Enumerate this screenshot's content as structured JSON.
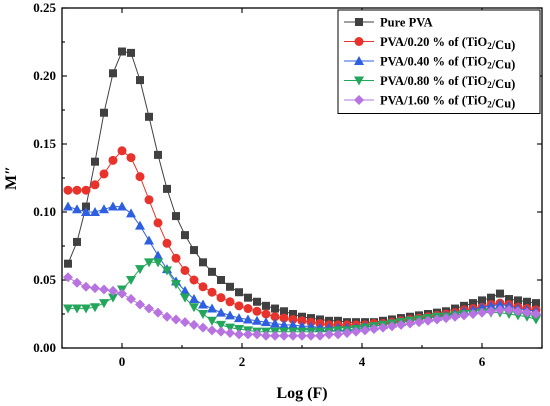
{
  "chart_data": {
    "type": "line",
    "xlabel": "Log (F)",
    "ylabel": "M″",
    "xlim": [
      -1,
      7
    ],
    "ylim": [
      0.0,
      0.25
    ],
    "xticks": [
      0,
      2,
      4,
      6
    ],
    "xtick_labels": [
      "0",
      "2",
      "4",
      "6"
    ],
    "yticks": [
      0.0,
      0.05,
      0.1,
      0.15,
      0.2,
      0.25
    ],
    "ytick_labels": [
      "0.00",
      "0.05",
      "0.10",
      "0.15",
      "0.20",
      "0.25"
    ],
    "legend_position": "top-right",
    "grid": false,
    "x": [
      -0.9,
      -0.75,
      -0.6,
      -0.45,
      -0.3,
      -0.15,
      0.0,
      0.15,
      0.3,
      0.45,
      0.6,
      0.75,
      0.9,
      1.05,
      1.2,
      1.35,
      1.5,
      1.65,
      1.8,
      1.95,
      2.1,
      2.25,
      2.4,
      2.55,
      2.7,
      2.85,
      3.0,
      3.15,
      3.3,
      3.45,
      3.6,
      3.75,
      3.9,
      4.05,
      4.2,
      4.35,
      4.5,
      4.65,
      4.8,
      4.95,
      5.1,
      5.25,
      5.4,
      5.55,
      5.7,
      5.85,
      6.0,
      6.15,
      6.3,
      6.45,
      6.6,
      6.75,
      6.9
    ],
    "series": [
      {
        "name": "Pure PVA",
        "marker": "square",
        "color": "#404040",
        "values": [
          0.062,
          0.078,
          0.104,
          0.137,
          0.173,
          0.202,
          0.218,
          0.217,
          0.197,
          0.17,
          0.142,
          0.117,
          0.097,
          0.083,
          0.072,
          0.063,
          0.056,
          0.05,
          0.045,
          0.041,
          0.037,
          0.034,
          0.031,
          0.029,
          0.027,
          0.025,
          0.023,
          0.022,
          0.021,
          0.02,
          0.02,
          0.019,
          0.019,
          0.019,
          0.019,
          0.02,
          0.021,
          0.022,
          0.023,
          0.024,
          0.025,
          0.026,
          0.027,
          0.029,
          0.031,
          0.033,
          0.035,
          0.037,
          0.04,
          0.036,
          0.035,
          0.034,
          0.033
        ]
      },
      {
        "name": "PVA/0.20 % of (TiO₂/Cu)",
        "marker": "circle",
        "color": "#e8332c",
        "values": [
          0.116,
          0.116,
          0.116,
          0.12,
          0.128,
          0.138,
          0.145,
          0.14,
          0.126,
          0.109,
          0.092,
          0.077,
          0.066,
          0.057,
          0.05,
          0.045,
          0.041,
          0.037,
          0.034,
          0.031,
          0.029,
          0.027,
          0.025,
          0.023,
          0.022,
          0.021,
          0.02,
          0.019,
          0.018,
          0.017,
          0.017,
          0.017,
          0.017,
          0.017,
          0.018,
          0.018,
          0.019,
          0.02,
          0.021,
          0.022,
          0.023,
          0.024,
          0.025,
          0.026,
          0.028,
          0.029,
          0.03,
          0.032,
          0.033,
          0.032,
          0.03,
          0.029,
          0.028
        ]
      },
      {
        "name": "PVA/0.40 % of (TiO₂/Cu)",
        "marker": "triangle-up",
        "color": "#2e5fe0",
        "values": [
          0.104,
          0.102,
          0.1,
          0.1,
          0.102,
          0.104,
          0.104,
          0.099,
          0.09,
          0.079,
          0.068,
          0.058,
          0.049,
          0.042,
          0.036,
          0.032,
          0.029,
          0.026,
          0.024,
          0.022,
          0.021,
          0.02,
          0.019,
          0.018,
          0.017,
          0.017,
          0.016,
          0.016,
          0.015,
          0.015,
          0.015,
          0.015,
          0.015,
          0.016,
          0.016,
          0.017,
          0.018,
          0.019,
          0.02,
          0.021,
          0.022,
          0.023,
          0.024,
          0.025,
          0.027,
          0.028,
          0.03,
          0.031,
          0.032,
          0.031,
          0.029,
          0.028,
          0.027
        ]
      },
      {
        "name": "PVA/0.80 % of (TiO₂/Cu)",
        "marker": "triangle-down",
        "color": "#22a65a",
        "values": [
          0.029,
          0.029,
          0.029,
          0.03,
          0.033,
          0.037,
          0.043,
          0.05,
          0.058,
          0.063,
          0.063,
          0.057,
          0.047,
          0.037,
          0.03,
          0.025,
          0.02,
          0.017,
          0.015,
          0.014,
          0.013,
          0.012,
          0.012,
          0.012,
          0.012,
          0.012,
          0.012,
          0.012,
          0.012,
          0.012,
          0.013,
          0.013,
          0.014,
          0.015,
          0.016,
          0.017,
          0.018,
          0.019,
          0.02,
          0.021,
          0.022,
          0.023,
          0.023,
          0.024,
          0.025,
          0.025,
          0.026,
          0.026,
          0.026,
          0.025,
          0.024,
          0.023,
          0.021
        ]
      },
      {
        "name": "PVA/1.60 % of (TiO₂/Cu)",
        "marker": "diamond",
        "color": "#b774e0",
        "values": [
          0.052,
          0.048,
          0.045,
          0.044,
          0.043,
          0.042,
          0.04,
          0.036,
          0.032,
          0.029,
          0.026,
          0.023,
          0.021,
          0.019,
          0.017,
          0.015,
          0.013,
          0.012,
          0.011,
          0.01,
          0.01,
          0.01,
          0.009,
          0.009,
          0.009,
          0.009,
          0.009,
          0.009,
          0.009,
          0.01,
          0.01,
          0.011,
          0.012,
          0.013,
          0.014,
          0.015,
          0.016,
          0.017,
          0.018,
          0.019,
          0.02,
          0.021,
          0.022,
          0.023,
          0.024,
          0.025,
          0.026,
          0.027,
          0.028,
          0.028,
          0.027,
          0.026,
          0.025
        ]
      }
    ]
  }
}
